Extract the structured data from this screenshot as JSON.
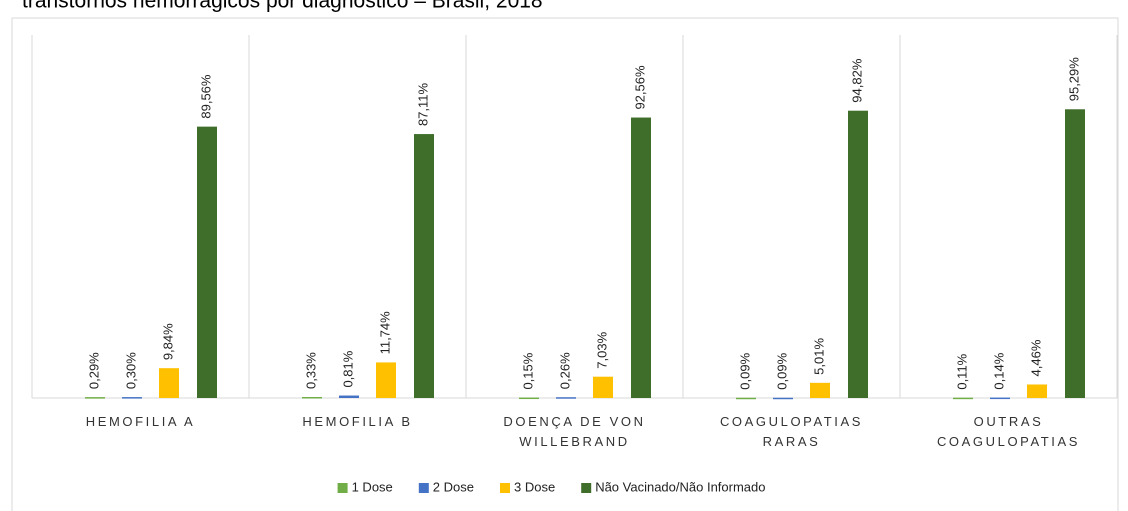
{
  "chart_data": {
    "type": "bar",
    "title": "transtornos hemorrágicos por diagnóstico – Brasil, 2018",
    "categories": [
      "HEMOFILIA A",
      "HEMOFILIA B",
      "DOENÇA DE VON WILLEBRAND",
      "COAGULOPATIAS RARAS",
      "OUTRAS COAGULOPATIAS"
    ],
    "series": [
      {
        "name": "1 Dose",
        "color": "#70ad47",
        "values": [
          0.29,
          0.33,
          0.15,
          0.09,
          0.11
        ],
        "value_labels": [
          "0,29%",
          "0,33%",
          "0,15%",
          "0,09%",
          "0,11%"
        ]
      },
      {
        "name": "2 Dose",
        "color": "#4472c4",
        "values": [
          0.3,
          0.81,
          0.26,
          0.09,
          0.14
        ],
        "value_labels": [
          "0,30%",
          "0,81%",
          "0,26%",
          "0,09%",
          "0,14%"
        ]
      },
      {
        "name": "3 Dose",
        "color": "#ffc000",
        "values": [
          9.84,
          11.74,
          7.03,
          5.01,
          4.46
        ],
        "value_labels": [
          "9,84%",
          "11,74%",
          "7,03%",
          "5,01%",
          "4,46%"
        ]
      },
      {
        "name": "Não Vacinado/Não Informado",
        "color": "#3f6e2a",
        "values": [
          89.56,
          87.11,
          92.56,
          94.82,
          95.29
        ],
        "value_labels": [
          "89,56%",
          "87,11%",
          "92,56%",
          "94,82%",
          "95,29%"
        ]
      }
    ],
    "legend": "bottom"
  }
}
